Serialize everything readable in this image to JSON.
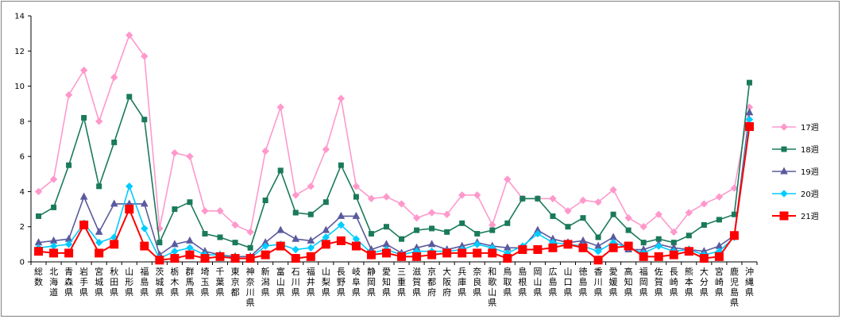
{
  "chart_data": {
    "type": "line",
    "title": "",
    "xlabel": "",
    "ylabel": "",
    "ylim": [
      0,
      14
    ],
    "yticks": [
      0,
      2,
      4,
      6,
      8,
      10,
      12,
      14
    ],
    "grid": false,
    "legend_position": "right",
    "categories": [
      "総数",
      "北海道",
      "青森県",
      "岩手県",
      "宮城県",
      "秋田県",
      "山形県",
      "福島県",
      "茨城県",
      "栃木県",
      "群馬県",
      "埼玉県",
      "千葉県",
      "東京都",
      "神奈川県",
      "新潟県",
      "富山県",
      "石川県",
      "福井県",
      "山梨県",
      "長野県",
      "岐阜県",
      "静岡県",
      "愛知県",
      "三重県",
      "滋賀県",
      "京都府",
      "大阪府",
      "兵庫県",
      "奈良県",
      "和歌山県",
      "鳥取県",
      "島根県",
      "岡山県",
      "広島県",
      "山口県",
      "徳島県",
      "香川県",
      "愛媛県",
      "高知県",
      "福岡県",
      "佐賀県",
      "長崎県",
      "熊本県",
      "大分県",
      "宮崎県",
      "鹿児島県",
      "沖縄県"
    ],
    "series": [
      {
        "name": "17週",
        "color": "#ff99cc",
        "marker": "diamond",
        "values": [
          4.0,
          4.7,
          9.5,
          10.9,
          8.0,
          10.5,
          12.9,
          11.7,
          1.9,
          6.2,
          6.0,
          2.9,
          2.9,
          2.1,
          1.7,
          6.3,
          8.8,
          3.8,
          4.3,
          6.4,
          9.3,
          4.3,
          3.6,
          3.7,
          3.3,
          2.5,
          2.8,
          2.7,
          3.8,
          3.8,
          2.1,
          4.7,
          3.6,
          3.6,
          3.6,
          2.9,
          3.5,
          3.4,
          4.1,
          2.5,
          2.0,
          2.7,
          1.7,
          2.8,
          3.3,
          3.7,
          4.2,
          8.8
        ]
      },
      {
        "name": "18週",
        "color": "#1a7a5a",
        "marker": "square",
        "values": [
          2.6,
          3.1,
          5.5,
          8.2,
          4.3,
          6.8,
          9.4,
          8.1,
          1.1,
          3.0,
          3.4,
          1.6,
          1.4,
          1.1,
          0.8,
          3.5,
          5.2,
          2.8,
          2.7,
          3.4,
          5.5,
          3.7,
          1.6,
          2.0,
          1.3,
          1.8,
          1.9,
          1.7,
          2.2,
          1.6,
          1.8,
          2.2,
          3.6,
          3.6,
          2.6,
          2.0,
          2.5,
          1.4,
          2.7,
          1.8,
          1.1,
          1.3,
          1.1,
          1.5,
          2.1,
          2.4,
          2.7,
          10.2
        ]
      },
      {
        "name": "19週",
        "color": "#5a5a9e",
        "marker": "triangle",
        "values": [
          1.1,
          1.2,
          1.3,
          3.7,
          1.7,
          3.3,
          3.3,
          3.3,
          0.4,
          1.0,
          1.2,
          0.6,
          0.4,
          0.3,
          0.3,
          1.1,
          1.8,
          1.3,
          1.2,
          1.8,
          2.6,
          2.6,
          0.7,
          1.0,
          0.5,
          0.8,
          1.0,
          0.7,
          0.9,
          1.1,
          0.9,
          0.8,
          0.8,
          1.8,
          1.3,
          1.1,
          1.2,
          0.9,
          1.4,
          0.7,
          0.7,
          1.0,
          0.8,
          0.7,
          0.6,
          0.9,
          1.5,
          8.5
        ]
      },
      {
        "name": "20週",
        "color": "#00ccff",
        "marker": "diamond",
        "values": [
          0.8,
          0.9,
          1.0,
          2.2,
          1.1,
          1.4,
          4.3,
          1.9,
          0.2,
          0.6,
          0.8,
          0.4,
          0.4,
          0.2,
          0.2,
          0.9,
          1.0,
          0.7,
          0.8,
          1.4,
          2.1,
          1.3,
          0.5,
          0.7,
          0.4,
          0.6,
          0.6,
          0.6,
          0.7,
          1.0,
          0.8,
          0.5,
          0.9,
          1.6,
          1.1,
          1.0,
          0.9,
          0.6,
          1.1,
          0.8,
          0.5,
          0.9,
          0.6,
          0.7,
          0.4,
          0.6,
          1.4,
          8.1
        ]
      },
      {
        "name": "21週",
        "color": "#ff0000",
        "marker": "square_big",
        "values": [
          0.6,
          0.5,
          0.5,
          2.1,
          0.5,
          1.0,
          3.0,
          0.9,
          0.1,
          0.2,
          0.4,
          0.2,
          0.3,
          0.2,
          0.2,
          0.4,
          0.9,
          0.2,
          0.3,
          1.0,
          1.2,
          0.9,
          0.4,
          0.5,
          0.3,
          0.3,
          0.4,
          0.5,
          0.5,
          0.5,
          0.5,
          0.2,
          0.7,
          0.7,
          0.8,
          1.0,
          0.8,
          0.1,
          0.8,
          0.9,
          0.3,
          0.3,
          0.4,
          0.6,
          0.2,
          0.3,
          1.5,
          7.7
        ]
      }
    ]
  }
}
